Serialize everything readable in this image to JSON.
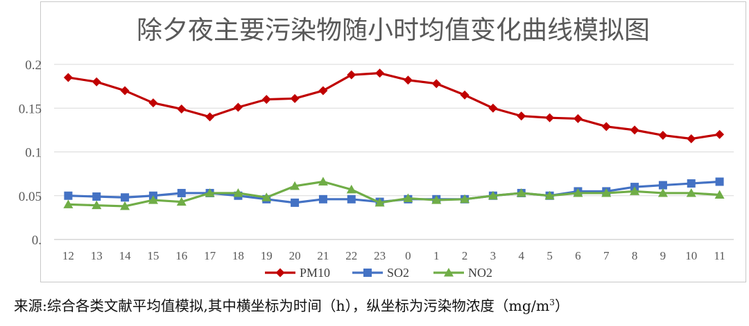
{
  "chart_data": {
    "type": "line",
    "title": "除夕夜主要污染物随小时均值变化曲线模拟图",
    "categories": [
      "12",
      "13",
      "14",
      "15",
      "16",
      "17",
      "18",
      "19",
      "20",
      "21",
      "22",
      "23",
      "0",
      "1",
      "2",
      "3",
      "4",
      "5",
      "6",
      "7",
      "8",
      "9",
      "10",
      "11"
    ],
    "y_ticks": [
      "0.",
      "0.05",
      "0.1",
      "0.15",
      "0.2"
    ],
    "ylim": [
      0,
      0.2
    ],
    "grid": true,
    "legend_position": "bottom",
    "series": [
      {
        "name": "PM10",
        "color": "#c00000",
        "marker": "diamond",
        "values": [
          0.185,
          0.18,
          0.17,
          0.156,
          0.149,
          0.14,
          0.151,
          0.16,
          0.161,
          0.17,
          0.188,
          0.19,
          0.182,
          0.178,
          0.165,
          0.15,
          0.141,
          0.139,
          0.138,
          0.129,
          0.125,
          0.119,
          0.115,
          0.12
        ]
      },
      {
        "name": "SO2",
        "color": "#4472c4",
        "marker": "square",
        "values": [
          0.05,
          0.049,
          0.048,
          0.05,
          0.053,
          0.053,
          0.05,
          0.046,
          0.042,
          0.046,
          0.046,
          0.043,
          0.046,
          0.046,
          0.046,
          0.05,
          0.053,
          0.05,
          0.055,
          0.055,
          0.06,
          0.062,
          0.064,
          0.066
        ]
      },
      {
        "name": "NO2",
        "color": "#70ad47",
        "marker": "triangle",
        "values": [
          0.04,
          0.039,
          0.038,
          0.045,
          0.043,
          0.053,
          0.053,
          0.048,
          0.061,
          0.066,
          0.057,
          0.042,
          0.047,
          0.045,
          0.046,
          0.05,
          0.053,
          0.05,
          0.053,
          0.053,
          0.055,
          0.053,
          0.053,
          0.051
        ]
      }
    ]
  },
  "caption": {
    "text": "来源:综合各类文献平均值模拟,其中横坐标为时间（h），纵坐标为污染物浓度（mg/m",
    "superscript": "3",
    "closing": "）"
  }
}
